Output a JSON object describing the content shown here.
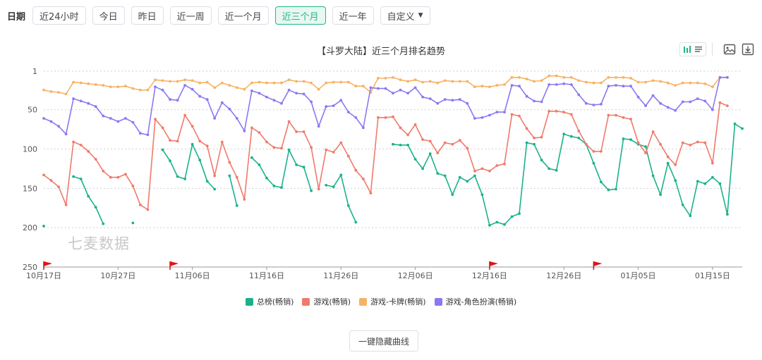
{
  "filters": {
    "label": "日期",
    "buttons": [
      {
        "label": "近24小时",
        "active": false
      },
      {
        "label": "今日",
        "active": false
      },
      {
        "label": "昨日",
        "active": false
      },
      {
        "label": "近一周",
        "active": false
      },
      {
        "label": "近一个月",
        "active": false
      },
      {
        "label": "近三个月",
        "active": true
      },
      {
        "label": "近一年",
        "active": false
      },
      {
        "label": "自定义",
        "active": false,
        "dropdown": true
      }
    ]
  },
  "toolbar_icons": [
    "bar-chart-icon",
    "list-icon",
    "image-icon",
    "download-icon"
  ],
  "watermark": "七麦数据",
  "hide_button": "一键隐藏曲线",
  "chart_data": {
    "type": "line",
    "title": "【斗罗大陆】近三个月排名趋势",
    "y_axis": {
      "inverted": true,
      "min": 1,
      "max": 250,
      "ticks": [
        1,
        50,
        100,
        150,
        200,
        250
      ]
    },
    "x_axis": {
      "start": "10月17日",
      "end": "01月16日",
      "tick_labels": [
        "10月17日",
        "10月27日",
        "11月06日",
        "11月16日",
        "11月26日",
        "12月06日",
        "12月16日",
        "12月26日",
        "01月05日",
        "01月15日"
      ]
    },
    "flag_markers": [
      "10月17日",
      "11月03日",
      "12月16日",
      "12月30日"
    ],
    "series": [
      {
        "name": "总榜(畅销)",
        "color": "#1bb28b",
        "values": [
          198,
          null,
          null,
          null,
          135,
          138,
          160,
          174,
          195,
          null,
          null,
          null,
          194,
          null,
          null,
          null,
          101,
          115,
          135,
          138,
          94,
          114,
          141,
          151,
          null,
          134,
          172,
          null,
          111,
          120,
          137,
          147,
          149,
          101,
          120,
          123,
          153,
          null,
          146,
          148,
          133,
          172,
          193,
          null,
          null,
          null,
          null,
          94,
          95,
          95,
          113,
          125,
          106,
          131,
          134,
          158,
          136,
          141,
          134,
          158,
          197,
          193,
          196,
          186,
          182,
          92,
          94,
          114,
          125,
          127,
          81,
          84,
          86,
          94,
          118,
          142,
          152,
          151,
          87,
          88,
          94,
          97,
          134,
          158,
          118,
          140,
          171,
          185,
          141,
          144,
          136,
          144,
          183,
          68,
          74
        ]
      },
      {
        "name": "游戏(畅销)",
        "color": "#f07a6b",
        "values": [
          133,
          140,
          148,
          171,
          91,
          95,
          103,
          113,
          128,
          136,
          136,
          132,
          147,
          171,
          177,
          62,
          73,
          89,
          90,
          57,
          71,
          90,
          96,
          134,
          91,
          117,
          136,
          164,
          73,
          79,
          91,
          98,
          99,
          65,
          78,
          78,
          98,
          151,
          101,
          104,
          92,
          109,
          127,
          138,
          156,
          60,
          60,
          59,
          73,
          82,
          69,
          88,
          90,
          105,
          92,
          94,
          89,
          99,
          128,
          125,
          128,
          121,
          119,
          56,
          58,
          74,
          86,
          85,
          52,
          52,
          53,
          56,
          77,
          94,
          103,
          103,
          57,
          57,
          60,
          62,
          92,
          105,
          78,
          94,
          110,
          120,
          92,
          95,
          91,
          92,
          118,
          41,
          45
        ]
      },
      {
        "name": "游戏-卡牌(畅销)",
        "color": "#f8b264",
        "values": [
          25,
          27,
          28,
          30,
          15,
          16,
          17,
          18,
          19,
          21,
          21,
          20,
          23,
          25,
          25,
          12,
          13,
          14,
          14,
          12,
          13,
          16,
          15,
          22,
          16,
          19,
          22,
          24,
          16,
          15,
          16,
          16,
          16,
          12,
          14,
          14,
          16,
          24,
          16,
          15,
          15,
          15,
          20,
          20,
          28,
          10,
          10,
          9,
          12,
          14,
          12,
          15,
          14,
          16,
          13,
          14,
          14,
          14,
          21,
          20,
          21,
          19,
          18,
          9,
          9,
          11,
          14,
          13,
          7,
          7,
          9,
          9,
          13,
          15,
          16,
          16,
          9,
          9,
          9,
          10,
          15,
          15,
          13,
          14,
          16,
          19,
          16,
          16,
          16,
          17,
          21,
          9,
          9
        ]
      },
      {
        "name": "游戏-角色扮演(畅销)",
        "color": "#8b78f3",
        "values": [
          61,
          65,
          71,
          81,
          36,
          39,
          42,
          46,
          58,
          61,
          65,
          61,
          66,
          80,
          82,
          21,
          25,
          37,
          38,
          19,
          24,
          33,
          37,
          61,
          41,
          49,
          61,
          77,
          26,
          29,
          34,
          38,
          42,
          25,
          29,
          30,
          40,
          71,
          46,
          45,
          38,
          53,
          60,
          73,
          22,
          23,
          23,
          29,
          25,
          29,
          22,
          34,
          36,
          42,
          37,
          38,
          37,
          42,
          61,
          60,
          57,
          53,
          53,
          19,
          20,
          33,
          39,
          40,
          18,
          18,
          17,
          18,
          31,
          42,
          44,
          43,
          20,
          19,
          20,
          20,
          34,
          45,
          32,
          42,
          47,
          51,
          40,
          40,
          36,
          39,
          50,
          9,
          9
        ]
      }
    ]
  }
}
